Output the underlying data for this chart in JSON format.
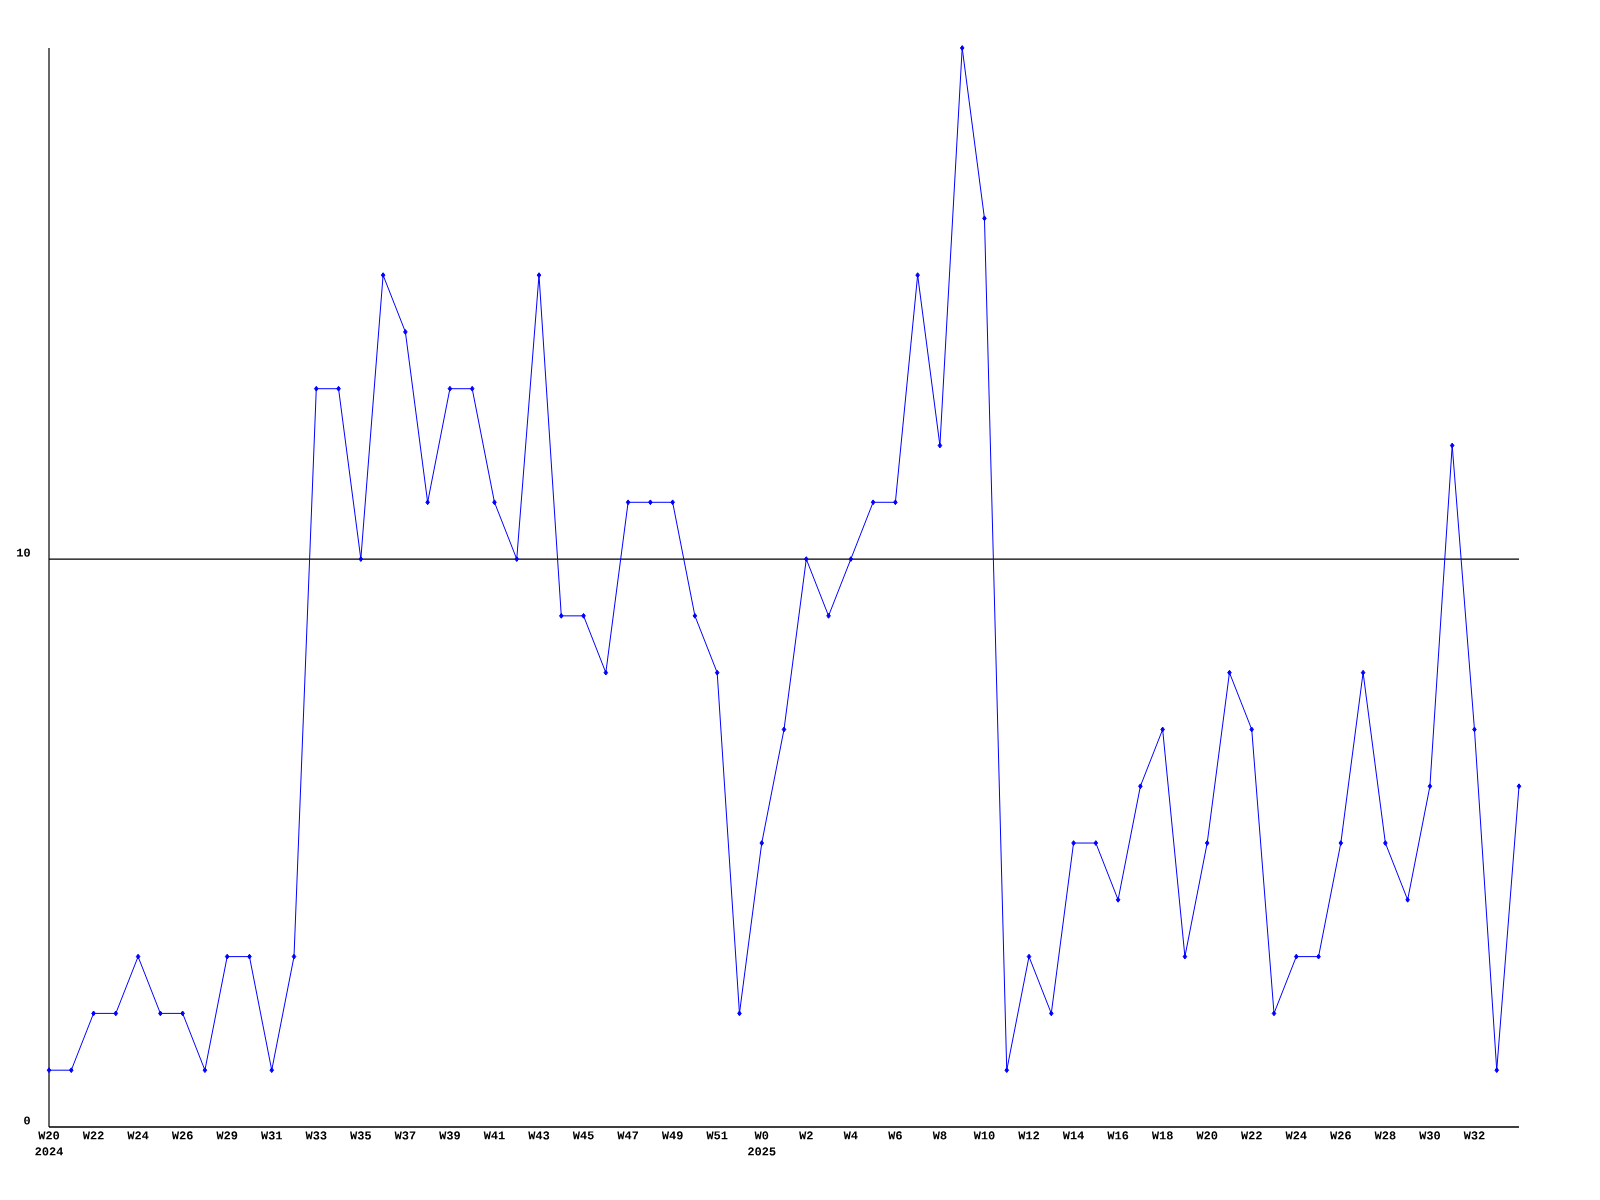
{
  "chart_data": {
    "type": "line",
    "categories": [
      "W20",
      null,
      "W22",
      null,
      "W24",
      null,
      "W26",
      null,
      "W29",
      null,
      "W31",
      null,
      "W33",
      null,
      "W35",
      null,
      "W37",
      null,
      "W39",
      null,
      "W41",
      null,
      "W43",
      null,
      "W45",
      null,
      "W47",
      null,
      "W49",
      null,
      "W51",
      null,
      "W0",
      null,
      "W2",
      null,
      "W4",
      null,
      "W6",
      null,
      "W8",
      null,
      "W10",
      null,
      "W12",
      null,
      "W14",
      null,
      "W16",
      null,
      "W18",
      null,
      "W20",
      null,
      "W22",
      null,
      "W24",
      null,
      "W26",
      null,
      "W28",
      null,
      "W30",
      null,
      "W32",
      null,
      null
    ],
    "values": [
      1,
      1,
      2,
      2,
      3,
      2,
      2,
      1,
      3,
      3,
      1,
      3,
      13,
      13,
      10,
      15,
      14,
      11,
      13,
      13,
      11,
      10,
      15,
      9,
      9,
      8,
      11,
      11,
      11,
      9,
      8,
      2,
      5,
      7,
      10,
      9,
      10,
      11,
      11,
      15,
      12,
      19,
      16,
      1,
      3,
      2,
      5,
      5,
      4,
      6,
      7,
      3,
      5,
      8,
      7,
      2,
      3,
      3,
      5,
      8,
      5,
      4,
      6,
      12,
      7,
      1,
      6
    ],
    "color": "#0000ff",
    "marker": "diamond",
    "grid": "y",
    "ylim": [
      0,
      19
    ],
    "yticks": [
      0,
      10
    ],
    "annotations": [
      "2024",
      "2025"
    ]
  }
}
